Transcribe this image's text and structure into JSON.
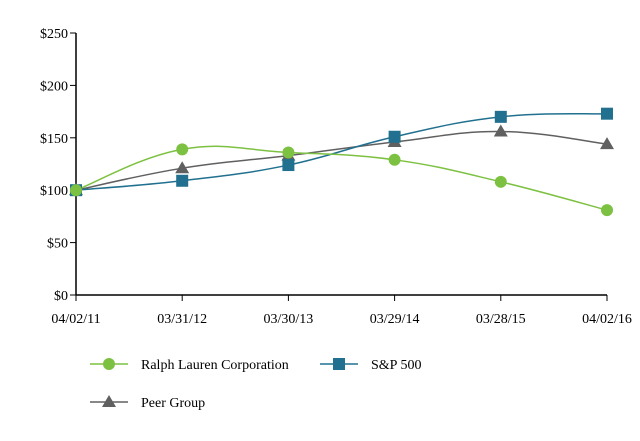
{
  "chart_data": {
    "type": "line",
    "title": "",
    "xlabel": "",
    "ylabel": "",
    "categories": [
      "04/02/11",
      "03/31/12",
      "03/30/13",
      "03/29/14",
      "03/28/15",
      "04/02/16"
    ],
    "ylim": [
      0,
      250
    ],
    "yticks": [
      0,
      50,
      100,
      150,
      200,
      250
    ],
    "ytick_labels": [
      "$0",
      "$50",
      "$100",
      "$150",
      "$200",
      "$250"
    ],
    "grid": false,
    "legend_placement": "bottom",
    "series": [
      {
        "name": "Ralph Lauren Corporation",
        "values": [
          100,
          139,
          136,
          129,
          108,
          81
        ],
        "color": "#7dc142",
        "marker": "circle"
      },
      {
        "name": "S&P 500",
        "values": [
          100,
          109,
          124,
          151,
          170,
          173
        ],
        "color": "#21708f",
        "marker": "square"
      },
      {
        "name": "Peer Group",
        "values": [
          100,
          121,
          133,
          146,
          156,
          144
        ],
        "color": "#606060",
        "marker": "triangle"
      }
    ]
  }
}
